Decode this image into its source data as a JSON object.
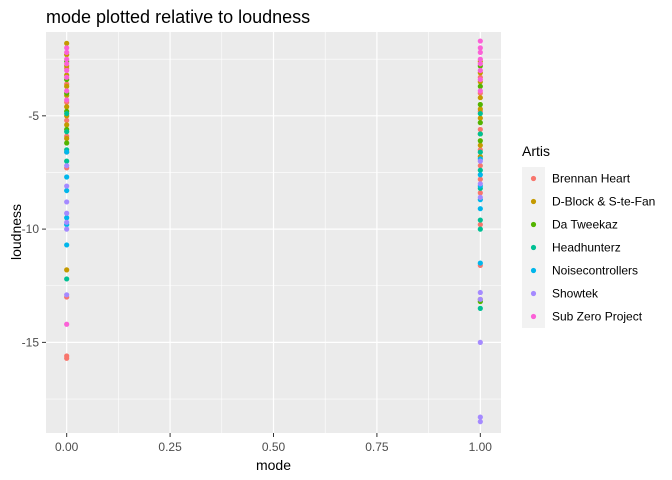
{
  "chart_data": {
    "type": "scatter",
    "title": "mode plotted relative to loudness",
    "xlabel": "mode",
    "ylabel": "loudness",
    "xlim": [
      -0.05,
      1.05
    ],
    "ylim": [
      -19.0,
      -1.3
    ],
    "x_ticks": [
      0.0,
      0.25,
      0.5,
      0.75,
      1.0
    ],
    "x_tick_labels": [
      "0.00",
      "0.25",
      "0.50",
      "0.75",
      "1.00"
    ],
    "y_ticks": [
      -15,
      -10,
      -5
    ],
    "y_tick_labels": [
      "-15",
      "-10",
      "-5"
    ],
    "grid": true,
    "legend_title": "Artis",
    "legend_position": "right",
    "series": [
      {
        "name": "Brennan Heart",
        "color": "#F8766D",
        "points": [
          [
            0,
            -2.9
          ],
          [
            0,
            -3.6
          ],
          [
            0,
            -4.4
          ],
          [
            0,
            -5.2
          ],
          [
            0,
            -5.9
          ],
          [
            0,
            -6.6
          ],
          [
            0,
            -7.3
          ],
          [
            0,
            -13.0
          ],
          [
            0,
            -15.6
          ],
          [
            0,
            -15.7
          ],
          [
            1,
            -3.3
          ],
          [
            1,
            -4.0
          ],
          [
            1,
            -4.8
          ],
          [
            1,
            -5.6
          ],
          [
            1,
            -6.5
          ],
          [
            1,
            -7.2
          ],
          [
            1,
            -7.8
          ],
          [
            1,
            -8.4
          ],
          [
            1,
            -9.8
          ],
          [
            1,
            -11.6
          ]
        ]
      },
      {
        "name": "D-Block & S-te-Fan",
        "color": "#C49A00",
        "points": [
          [
            0,
            -1.8
          ],
          [
            0,
            -2.3
          ],
          [
            0,
            -2.8
          ],
          [
            0,
            -3.2
          ],
          [
            0,
            -3.7
          ],
          [
            0,
            -4.1
          ],
          [
            0,
            -4.6
          ],
          [
            0,
            -5.0
          ],
          [
            0,
            -5.4
          ],
          [
            0,
            -6.0
          ],
          [
            0,
            -11.8
          ],
          [
            1,
            -2.6
          ],
          [
            1,
            -3.1
          ],
          [
            1,
            -3.5
          ],
          [
            1,
            -4.2
          ],
          [
            1,
            -4.7
          ],
          [
            1,
            -5.1
          ],
          [
            1,
            -5.8
          ],
          [
            1,
            -6.3
          ],
          [
            1,
            -6.8
          ],
          [
            1,
            -13.1
          ]
        ]
      },
      {
        "name": "Da Tweekaz",
        "color": "#53B400",
        "points": [
          [
            0,
            -2.6
          ],
          [
            0,
            -3.4
          ],
          [
            0,
            -4.0
          ],
          [
            0,
            -4.8
          ],
          [
            0,
            -5.6
          ],
          [
            0,
            -6.2
          ],
          [
            1,
            -2.8
          ],
          [
            1,
            -3.7
          ],
          [
            1,
            -4.5
          ],
          [
            1,
            -5.3
          ],
          [
            1,
            -6.1
          ],
          [
            1,
            -13.2
          ]
        ]
      },
      {
        "name": "Headhunterz",
        "color": "#00C094",
        "points": [
          [
            0,
            -4.9
          ],
          [
            0,
            -5.7
          ],
          [
            0,
            -6.5
          ],
          [
            0,
            -7.0
          ],
          [
            0,
            -12.2
          ],
          [
            1,
            -4.9
          ],
          [
            1,
            -5.8
          ],
          [
            1,
            -6.6
          ],
          [
            1,
            -7.4
          ],
          [
            1,
            -8.2
          ],
          [
            1,
            -9.6
          ],
          [
            1,
            -10.0
          ],
          [
            1,
            -13.5
          ]
        ]
      },
      {
        "name": "Noisecontrollers",
        "color": "#00B6EB",
        "points": [
          [
            0,
            -6.6
          ],
          [
            0,
            -7.7
          ],
          [
            0,
            -8.3
          ],
          [
            0,
            -9.5
          ],
          [
            0,
            -9.8
          ],
          [
            0,
            -10.7
          ],
          [
            1,
            -6.9
          ],
          [
            1,
            -7.6
          ],
          [
            1,
            -8.1
          ],
          [
            1,
            -8.7
          ],
          [
            1,
            -9.1
          ],
          [
            1,
            -11.5
          ]
        ]
      },
      {
        "name": "Showtek",
        "color": "#A58AFF",
        "points": [
          [
            0,
            -7.2
          ],
          [
            0,
            -8.1
          ],
          [
            0,
            -8.8
          ],
          [
            0,
            -9.3
          ],
          [
            0,
            -9.7
          ],
          [
            0,
            -10.0
          ],
          [
            0,
            -12.9
          ],
          [
            1,
            -7.0
          ],
          [
            1,
            -8.0
          ],
          [
            1,
            -8.6
          ],
          [
            1,
            -12.8
          ],
          [
            1,
            -13.1
          ],
          [
            1,
            -15.0
          ],
          [
            1,
            -18.3
          ],
          [
            1,
            -18.5
          ]
        ]
      },
      {
        "name": "Sub Zero Project",
        "color": "#FB61D7",
        "points": [
          [
            0,
            -2.0
          ],
          [
            0,
            -2.2
          ],
          [
            0,
            -2.5
          ],
          [
            0,
            -2.7
          ],
          [
            0,
            -3.0
          ],
          [
            0,
            -3.3
          ],
          [
            0,
            -3.9
          ],
          [
            0,
            -4.3
          ],
          [
            0,
            -14.2
          ],
          [
            1,
            -1.7
          ],
          [
            1,
            -2.0
          ],
          [
            1,
            -2.2
          ],
          [
            1,
            -2.5
          ],
          [
            1,
            -2.7
          ],
          [
            1,
            -3.0
          ],
          [
            1,
            -3.4
          ],
          [
            1,
            -3.9
          ]
        ]
      }
    ]
  }
}
